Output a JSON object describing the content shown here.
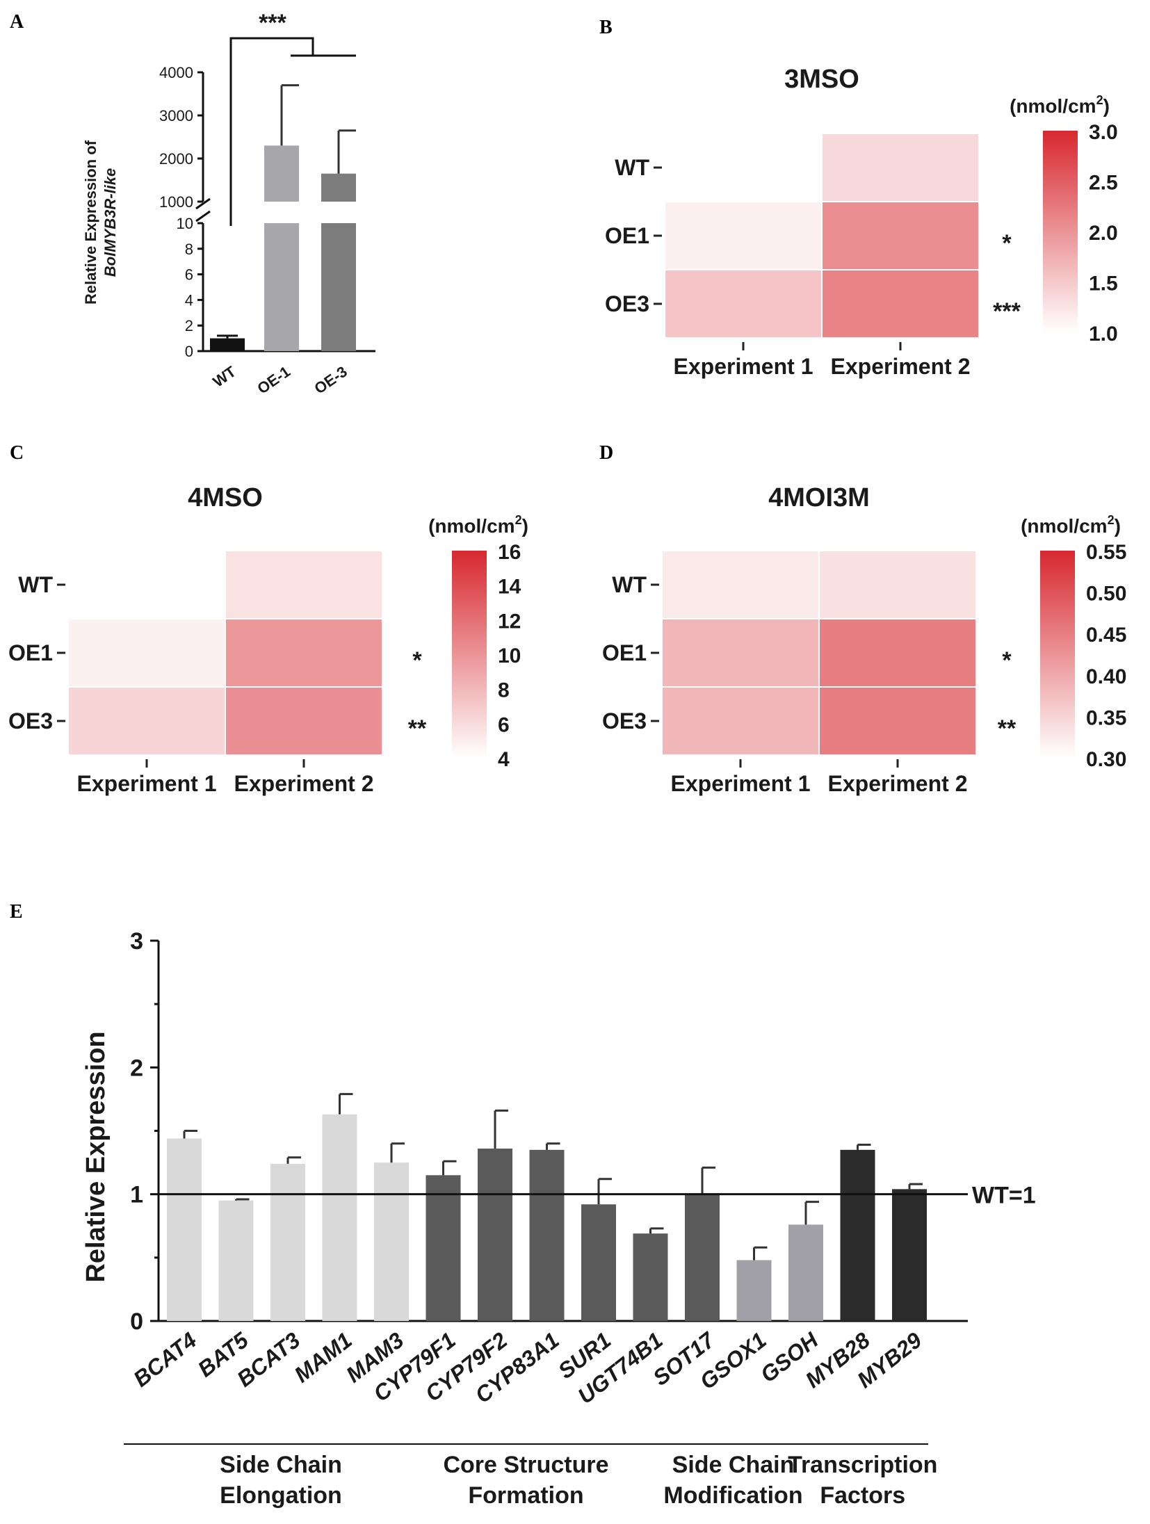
{
  "panels": {
    "A": {
      "letter": "A",
      "chart_data": {
        "type": "bar",
        "title": "",
        "ylabel": "Relative Expression of",
        "ylabel_gene": "BolMYB3R-like",
        "categories": [
          "WT",
          "OE-1",
          "OE-3"
        ],
        "values": [
          1,
          2300,
          1650
        ],
        "errors": [
          0.2,
          1400,
          1000
        ],
        "colors": [
          "#111111",
          "#a6a6ab",
          "#7c7c7c"
        ],
        "y_lower_ticks": [
          "0",
          "2",
          "4",
          "6",
          "8",
          "10"
        ],
        "y_upper_ticks": [
          "1000",
          "2000",
          "3000",
          "4000"
        ],
        "y_break": [
          10,
          1000
        ],
        "ylim": [
          0,
          4000
        ],
        "significance": "***"
      }
    },
    "B": {
      "letter": "B",
      "chart_data": {
        "type": "heatmap",
        "title": "3MSO",
        "rows": [
          "WT",
          "OE1",
          "OE3"
        ],
        "cols": [
          "Experiment 1",
          "Experiment 2"
        ],
        "values": [
          [
            null,
            1.35
          ],
          [
            1.15,
            2.05
          ],
          [
            1.55,
            2.15
          ]
        ],
        "significance": [
          "",
          "*",
          "***"
        ],
        "colorbar": {
          "unit": "(nmol/cm",
          "unit_sup": "2",
          "unit_close": ")",
          "min": 1.0,
          "max": 3.0,
          "ticks": [
            "3.0",
            "2.5",
            "2.0",
            "1.5",
            "1.0"
          ]
        }
      }
    },
    "C": {
      "letter": "C",
      "chart_data": {
        "type": "heatmap",
        "title": "4MSO",
        "rows": [
          "WT",
          "OE1",
          "OE3"
        ],
        "cols": [
          "Experiment 1",
          "Experiment 2"
        ],
        "values": [
          [
            null,
            5.6
          ],
          [
            4.8,
            9.8
          ],
          [
            6.4,
            10.2
          ]
        ],
        "significance": [
          "",
          "*",
          "**"
        ],
        "colorbar": {
          "unit": "(nmol/cm",
          "unit_sup": "2",
          "unit_close": ")",
          "min": 4,
          "max": 16,
          "ticks": [
            "16",
            "14",
            "12",
            "10",
            "8",
            "6",
            "4"
          ]
        }
      }
    },
    "D": {
      "letter": "D",
      "chart_data": {
        "type": "heatmap",
        "title": "4MOI3M",
        "rows": [
          "WT",
          "OE1",
          "OE3"
        ],
        "cols": [
          "Experiment 1",
          "Experiment 2"
        ],
        "values": [
          [
            0.325,
            0.335
          ],
          [
            0.385,
            0.45
          ],
          [
            0.385,
            0.45
          ]
        ],
        "significance": [
          "",
          "*",
          "**"
        ],
        "colorbar": {
          "unit": "(nmol/cm",
          "unit_sup": "2",
          "unit_close": ")",
          "min": 0.3,
          "max": 0.55,
          "ticks": [
            "0.55",
            "0.50",
            "0.45",
            "0.40",
            "0.35",
            "0.30"
          ]
        }
      }
    },
    "E": {
      "letter": "E",
      "chart_data": {
        "type": "bar",
        "title": "",
        "ylabel": "Relative Expression",
        "ylim": [
          0,
          3
        ],
        "y_ticks": [
          "0",
          "1",
          "2",
          "3"
        ],
        "reference_line": {
          "value": 1,
          "label": "WT=1"
        },
        "categories": [
          "BCAT4",
          "BAT5",
          "BCAT3",
          "MAM1",
          "MAM3",
          "CYP79F1",
          "CYP79F2",
          "CYP83A1",
          "SUR1",
          "UGT74B1",
          "SOT17",
          "GSOX1",
          "GSOH",
          "MYB28",
          "MYB29"
        ],
        "values": [
          1.44,
          0.95,
          1.24,
          1.63,
          1.25,
          1.15,
          1.36,
          1.35,
          0.92,
          0.69,
          1.0,
          0.48,
          0.76,
          1.35,
          1.04
        ],
        "errors": [
          0.06,
          0.01,
          0.05,
          0.16,
          0.15,
          0.11,
          0.3,
          0.05,
          0.2,
          0.04,
          0.21,
          0.1,
          0.18,
          0.04,
          0.04
        ],
        "colors": [
          "#d9d9d9",
          "#d9d9d9",
          "#d9d9d9",
          "#d9d9d9",
          "#d9d9d9",
          "#5a5a5a",
          "#5a5a5a",
          "#5a5a5a",
          "#5a5a5a",
          "#5a5a5a",
          "#5a5a5a",
          "#a0a0a6",
          "#a0a0a6",
          "#2b2b2b",
          "#2b2b2b"
        ],
        "groups": [
          {
            "line1": "Side Chain",
            "line2": "Elongation",
            "start": 0,
            "end": 4
          },
          {
            "line1": "Core Structure",
            "line2": "Formation",
            "start": 5,
            "end": 9
          },
          {
            "line1": "Side Chain",
            "line2": "Modification",
            "start": 10,
            "end": 12
          },
          {
            "line1": "Transcription",
            "line2": "Factors",
            "start": 13,
            "end": 14
          }
        ]
      }
    }
  },
  "colors": {
    "heat_low": "#ffffff",
    "heat_high": "#d7282f"
  }
}
